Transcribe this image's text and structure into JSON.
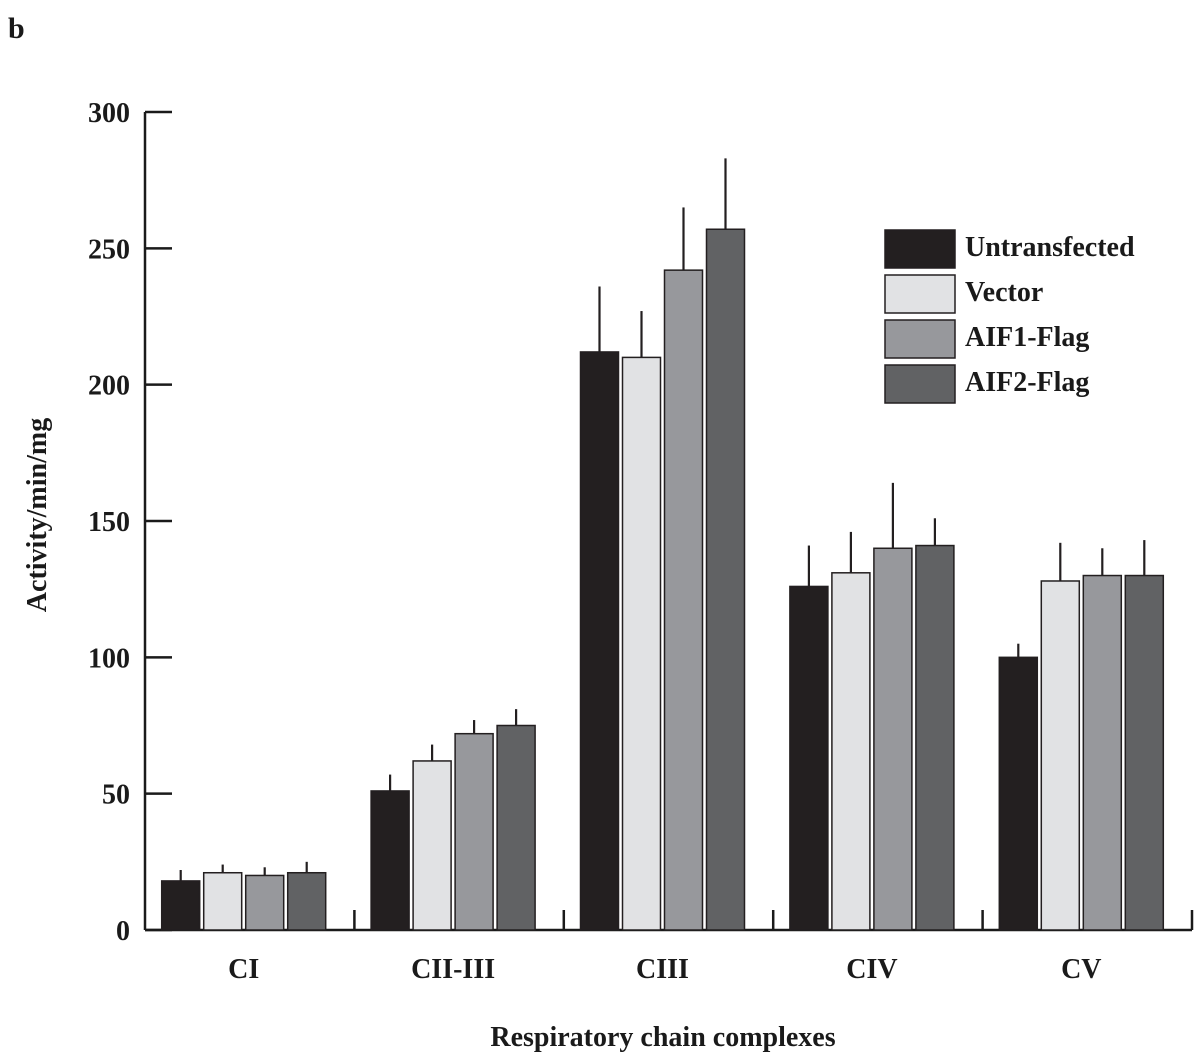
{
  "panel_label": "b",
  "chart_data": {
    "type": "bar",
    "xlabel": "Respiratory chain complexes",
    "ylabel": "Activity/min/mg",
    "ylim": [
      0,
      300
    ],
    "yticks": [
      0,
      50,
      100,
      150,
      200,
      250,
      300
    ],
    "ytick_labels": [
      "0",
      "50",
      "100",
      "150",
      "200",
      "250",
      "300"
    ],
    "categories": [
      "CI",
      "CII-III",
      "CIII",
      "CIV",
      "CV"
    ],
    "series": [
      {
        "name": "Untransfected",
        "color": "#231f20",
        "values": [
          18,
          51,
          212,
          126,
          100
        ],
        "errors": [
          4,
          6,
          24,
          15,
          5
        ]
      },
      {
        "name": "Vector",
        "color": "#e1e2e4",
        "values": [
          21,
          62,
          210,
          131,
          128
        ],
        "errors": [
          3,
          6,
          17,
          15,
          14
        ]
      },
      {
        "name": "AIF1-Flag",
        "color": "#97989c",
        "values": [
          20,
          72,
          242,
          140,
          130
        ],
        "errors": [
          3,
          5,
          23,
          24,
          10
        ]
      },
      {
        "name": "AIF2-Flag",
        "color": "#616264",
        "values": [
          21,
          75,
          257,
          141,
          130
        ],
        "errors": [
          4,
          6,
          26,
          10,
          13
        ]
      }
    ],
    "legend_position": "top-right",
    "error_bars": "upper"
  }
}
